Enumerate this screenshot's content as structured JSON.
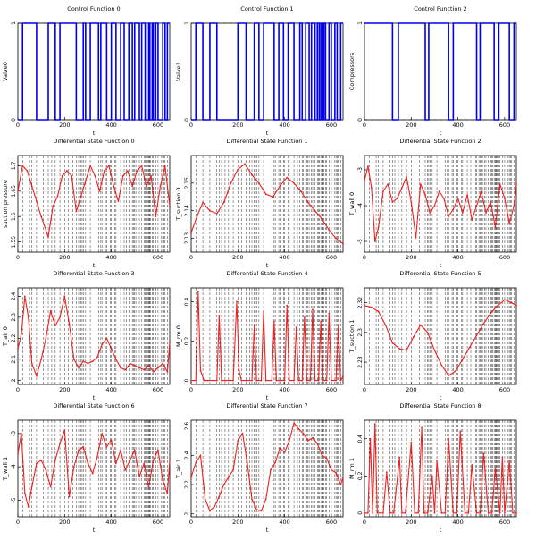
{
  "colors": {
    "control": "#0000ee",
    "state": "#ee2020",
    "axis": "#000000",
    "switch_lines": "#333333"
  },
  "t_ticks": [
    0,
    200,
    400,
    600
  ],
  "chart_data": [
    {
      "type": "line",
      "title": "Control Function 0",
      "xlabel": "t",
      "ylabel": "Valve0",
      "xlim": [
        0,
        650
      ],
      "ylim": [
        0,
        1
      ],
      "yticks": [
        "0",
        "1"
      ],
      "step": true,
      "series": [
        {
          "x": [
            0,
            20,
            60,
            80,
            130,
            160,
            180,
            250,
            280,
            290,
            310,
            345,
            355,
            380,
            400,
            420,
            440,
            455,
            475,
            490,
            500,
            520,
            530,
            545,
            560,
            565,
            575,
            580,
            590,
            600,
            620,
            630,
            640,
            650
          ],
          "values": [
            0,
            1,
            1,
            0,
            1,
            0,
            1,
            0,
            1,
            0,
            1,
            0,
            1,
            0,
            1,
            0,
            1,
            0,
            1,
            0,
            1,
            0,
            1,
            0,
            1,
            0,
            1,
            0,
            1,
            0,
            1,
            0,
            1,
            1
          ]
        }
      ]
    },
    {
      "type": "line",
      "title": "Control Function 1",
      "xlabel": "t",
      "ylabel": "Valve1",
      "xlim": [
        0,
        650
      ],
      "ylim": [
        0,
        1
      ],
      "yticks": [
        "0",
        "1"
      ],
      "step": true,
      "series": [
        {
          "x": [
            0,
            20,
            50,
            80,
            110,
            200,
            235,
            270,
            290,
            310,
            355,
            375,
            395,
            415,
            440,
            465,
            475,
            490,
            505,
            515,
            530,
            540,
            548,
            555,
            562,
            568,
            575,
            590,
            600,
            615,
            625,
            640,
            650
          ],
          "values": [
            0,
            1,
            0,
            1,
            0,
            1,
            0,
            1,
            0,
            1,
            0,
            1,
            0,
            1,
            0,
            1,
            0,
            1,
            0,
            1,
            0,
            1,
            0,
            1,
            0,
            1,
            0,
            1,
            0,
            1,
            0,
            1,
            1
          ]
        }
      ]
    },
    {
      "type": "line",
      "title": "Control Function 2",
      "xlabel": "t",
      "ylabel": "Compressors",
      "xlim": [
        0,
        650
      ],
      "ylim": [
        0,
        1
      ],
      "yticks": [
        "0",
        "1"
      ],
      "step": true,
      "series": [
        {
          "x": [
            0,
            120,
            145,
            260,
            275,
            360,
            380,
            480,
            495,
            555,
            575,
            620,
            640,
            650
          ],
          "values": [
            1,
            0,
            1,
            0,
            1,
            0,
            1,
            0,
            1,
            0,
            1,
            0,
            1,
            1
          ]
        }
      ]
    },
    {
      "type": "line",
      "title": "Differential State Function 0",
      "xlabel": "t",
      "ylabel": "suction pressure",
      "xlim": [
        0,
        650
      ],
      "ylim": [
        1.53,
        1.72
      ],
      "yticks": [
        "1.55",
        "1.6",
        "1.65",
        "1.7"
      ],
      "ytick_values": [
        1.55,
        1.6,
        1.65,
        1.7
      ],
      "series": [
        {
          "x": [
            0,
            20,
            40,
            60,
            80,
            100,
            130,
            150,
            170,
            190,
            210,
            230,
            250,
            270,
            290,
            310,
            330,
            350,
            370,
            390,
            410,
            430,
            450,
            470,
            490,
            510,
            530,
            550,
            570,
            590,
            610,
            630,
            650
          ],
          "values": [
            1.65,
            1.7,
            1.69,
            1.66,
            1.63,
            1.6,
            1.56,
            1.62,
            1.64,
            1.68,
            1.69,
            1.68,
            1.61,
            1.64,
            1.67,
            1.7,
            1.68,
            1.65,
            1.69,
            1.7,
            1.66,
            1.63,
            1.68,
            1.69,
            1.66,
            1.69,
            1.7,
            1.66,
            1.68,
            1.6,
            1.66,
            1.7,
            1.62
          ]
        }
      ]
    },
    {
      "type": "line",
      "title": "Differential State Function 1",
      "xlabel": "t",
      "ylabel": "T_suction 0",
      "xlim": [
        0,
        650
      ],
      "ylim": [
        2.125,
        2.16
      ],
      "yticks": [
        "2.13",
        "2.14",
        "2.15"
      ],
      "ytick_values": [
        2.13,
        2.14,
        2.15
      ],
      "series": [
        {
          "x": [
            0,
            25,
            50,
            80,
            110,
            140,
            170,
            200,
            230,
            260,
            290,
            320,
            350,
            380,
            410,
            440,
            470,
            500,
            530,
            560,
            590,
            620,
            650
          ],
          "values": [
            2.132,
            2.138,
            2.143,
            2.14,
            2.139,
            2.143,
            2.15,
            2.155,
            2.157,
            2.153,
            2.15,
            2.146,
            2.145,
            2.149,
            2.152,
            2.15,
            2.147,
            2.143,
            2.14,
            2.137,
            2.133,
            2.13,
            2.128
          ]
        }
      ]
    },
    {
      "type": "line",
      "title": "Differential State Function 2",
      "xlabel": "t",
      "ylabel": "T_wall 0",
      "xlim": [
        0,
        650
      ],
      "ylim": [
        -5.3,
        -2.6
      ],
      "yticks": [
        "-5",
        "-4",
        "-3"
      ],
      "ytick_values": [
        -5,
        -4,
        -3
      ],
      "series": [
        {
          "x": [
            0,
            15,
            30,
            45,
            60,
            80,
            100,
            120,
            140,
            160,
            180,
            200,
            220,
            240,
            260,
            280,
            300,
            320,
            340,
            360,
            380,
            400,
            420,
            440,
            460,
            480,
            500,
            520,
            540,
            560,
            580,
            600,
            620,
            640,
            650
          ],
          "values": [
            -3.3,
            -2.9,
            -3.5,
            -5.0,
            -4.6,
            -3.6,
            -3.4,
            -3.9,
            -3.8,
            -3.5,
            -3.2,
            -3.9,
            -4.9,
            -3.4,
            -3.7,
            -4.2,
            -4.0,
            -3.6,
            -3.8,
            -4.3,
            -4.1,
            -3.8,
            -4.2,
            -3.7,
            -4.4,
            -4.0,
            -3.6,
            -4.2,
            -3.9,
            -4.6,
            -3.4,
            -3.8,
            -4.5,
            -4.0,
            -3.4
          ]
        }
      ]
    },
    {
      "type": "line",
      "title": "Differential State Function 3",
      "xlabel": "t",
      "ylabel": "T_air 0",
      "xlim": [
        0,
        650
      ],
      "ylim": [
        1.98,
        2.44
      ],
      "yticks": [
        "2",
        "2.1",
        "2.2",
        "2.3",
        "2.4"
      ],
      "ytick_values": [
        2.0,
        2.1,
        2.2,
        2.3,
        2.4
      ],
      "series": [
        {
          "x": [
            0,
            15,
            30,
            45,
            60,
            80,
            100,
            120,
            140,
            160,
            180,
            200,
            220,
            240,
            260,
            280,
            300,
            320,
            340,
            360,
            380,
            400,
            420,
            440,
            460,
            480,
            500,
            520,
            540,
            560,
            580,
            600,
            620,
            640,
            650
          ],
          "values": [
            2.15,
            2.22,
            2.4,
            2.3,
            2.08,
            2.02,
            2.1,
            2.2,
            2.33,
            2.26,
            2.3,
            2.4,
            2.27,
            2.1,
            2.06,
            2.09,
            2.08,
            2.09,
            2.11,
            2.17,
            2.2,
            2.15,
            2.1,
            2.06,
            2.05,
            2.08,
            2.07,
            2.06,
            2.05,
            2.07,
            2.04,
            2.06,
            2.08,
            2.04,
            2.18
          ]
        }
      ]
    },
    {
      "type": "line",
      "title": "Differential State Function 4",
      "xlabel": "t",
      "ylabel": "M_rm 0",
      "xlim": [
        0,
        650
      ],
      "ylim": [
        -0.02,
        0.47
      ],
      "yticks": [
        "0",
        "0.2",
        "0.4"
      ],
      "ytick_values": [
        0,
        0.2,
        0.4
      ],
      "series": [
        {
          "x": [
            0,
            20,
            30,
            40,
            55,
            70,
            110,
            120,
            130,
            145,
            180,
            195,
            205,
            215,
            235,
            260,
            270,
            280,
            300,
            310,
            320,
            345,
            355,
            365,
            380,
            400,
            410,
            420,
            440,
            450,
            460,
            475,
            485,
            495,
            510,
            520,
            530,
            545,
            555,
            565,
            580,
            590,
            600,
            620,
            630,
            640,
            650
          ],
          "values": [
            0,
            0,
            0.45,
            0.05,
            0,
            0,
            0,
            0.33,
            0,
            0,
            0,
            0.4,
            0.05,
            0,
            0,
            0,
            0.28,
            0,
            0,
            0.35,
            0,
            0,
            0.3,
            0,
            0,
            0,
            0.38,
            0,
            0,
            0.27,
            0,
            0,
            0.32,
            0,
            0,
            0.36,
            0,
            0,
            0.3,
            0,
            0,
            0.34,
            0,
            0,
            0.28,
            0,
            0.02
          ]
        }
      ]
    },
    {
      "type": "line",
      "title": "Differential State Function 5",
      "xlabel": "t",
      "ylabel": "T_suction 1",
      "xlim": [
        0,
        650
      ],
      "ylim": [
        2.265,
        2.33
      ],
      "yticks": [
        "2.28",
        "2.3",
        "2.32"
      ],
      "ytick_values": [
        2.28,
        2.3,
        2.32
      ],
      "series": [
        {
          "x": [
            0,
            30,
            60,
            90,
            120,
            150,
            180,
            210,
            240,
            270,
            300,
            330,
            360,
            390,
            420,
            450,
            480,
            510,
            540,
            570,
            600,
            630,
            650
          ],
          "values": [
            2.318,
            2.317,
            2.314,
            2.305,
            2.293,
            2.289,
            2.288,
            2.297,
            2.305,
            2.3,
            2.288,
            2.278,
            2.271,
            2.274,
            2.282,
            2.29,
            2.298,
            2.306,
            2.313,
            2.318,
            2.322,
            2.32,
            2.318
          ]
        }
      ]
    },
    {
      "type": "line",
      "title": "Differential State Function 6",
      "xlabel": "t",
      "ylabel": "T_wall 1",
      "xlim": [
        0,
        650
      ],
      "ylim": [
        -5.5,
        -2.6
      ],
      "yticks": [
        "-5",
        "-4",
        "-3"
      ],
      "ytick_values": [
        -5,
        -4,
        -3
      ],
      "series": [
        {
          "x": [
            0,
            15,
            30,
            45,
            60,
            80,
            100,
            120,
            140,
            160,
            180,
            200,
            220,
            240,
            260,
            280,
            300,
            320,
            340,
            360,
            380,
            400,
            420,
            440,
            460,
            480,
            500,
            520,
            540,
            560,
            580,
            600,
            620,
            640,
            650
          ],
          "values": [
            -3.6,
            -3.0,
            -4.8,
            -5.2,
            -4.6,
            -3.9,
            -3.8,
            -4.1,
            -4.6,
            -3.8,
            -3.3,
            -2.9,
            -4.9,
            -4.0,
            -3.5,
            -3.4,
            -3.9,
            -4.2,
            -3.7,
            -3.0,
            -3.4,
            -3.2,
            -3.9,
            -3.5,
            -4.1,
            -3.8,
            -3.5,
            -4.3,
            -3.9,
            -4.6,
            -3.8,
            -3.5,
            -4.4,
            -4.8,
            -3.8
          ]
        }
      ]
    },
    {
      "type": "line",
      "title": "Differential State Function 7",
      "xlabel": "t",
      "ylabel": "T_air 1",
      "xlim": [
        0,
        650
      ],
      "ylim": [
        1.98,
        2.64
      ],
      "yticks": [
        "2",
        "2.2",
        "2.4",
        "2.6"
      ],
      "ytick_values": [
        2.0,
        2.2,
        2.4,
        2.6
      ],
      "series": [
        {
          "x": [
            0,
            20,
            40,
            60,
            80,
            100,
            120,
            140,
            160,
            180,
            200,
            220,
            240,
            260,
            280,
            300,
            320,
            340,
            360,
            380,
            400,
            420,
            440,
            460,
            480,
            500,
            520,
            540,
            560,
            580,
            600,
            620,
            640,
            650
          ],
          "values": [
            2.25,
            2.35,
            2.4,
            2.1,
            2.02,
            2.05,
            2.12,
            2.2,
            2.25,
            2.3,
            2.5,
            2.55,
            2.35,
            2.1,
            2.03,
            2.02,
            2.1,
            2.3,
            2.35,
            2.45,
            2.42,
            2.5,
            2.62,
            2.58,
            2.55,
            2.5,
            2.52,
            2.48,
            2.4,
            2.38,
            2.3,
            2.28,
            2.2,
            2.25
          ]
        }
      ]
    },
    {
      "type": "line",
      "title": "Differential State Function 8",
      "xlabel": "t",
      "ylabel": "M_rm 1",
      "xlim": [
        0,
        650
      ],
      "ylim": [
        -0.02,
        0.5
      ],
      "yticks": [
        "0",
        "0.2",
        "0.4"
      ],
      "ytick_values": [
        0,
        0.2,
        0.4
      ],
      "series": [
        {
          "x": [
            0,
            15,
            25,
            35,
            45,
            55,
            80,
            95,
            110,
            125,
            150,
            160,
            175,
            200,
            215,
            230,
            245,
            255,
            270,
            290,
            300,
            310,
            330,
            345,
            360,
            380,
            395,
            410,
            430,
            445,
            460,
            480,
            495,
            510,
            530,
            545,
            560,
            580,
            590,
            600,
            620,
            635,
            650
          ],
          "values": [
            0,
            0,
            0.4,
            0,
            0.48,
            0,
            0,
            0.22,
            0,
            0,
            0.3,
            0,
            0,
            0.38,
            0,
            0,
            0.46,
            0,
            0,
            0.2,
            0,
            0.28,
            0,
            0,
            0.4,
            0,
            0,
            0.44,
            0,
            0,
            0.26,
            0,
            0,
            0.32,
            0,
            0,
            0.24,
            0,
            0.3,
            0,
            0.28,
            0,
            0
          ]
        }
      ]
    }
  ]
}
